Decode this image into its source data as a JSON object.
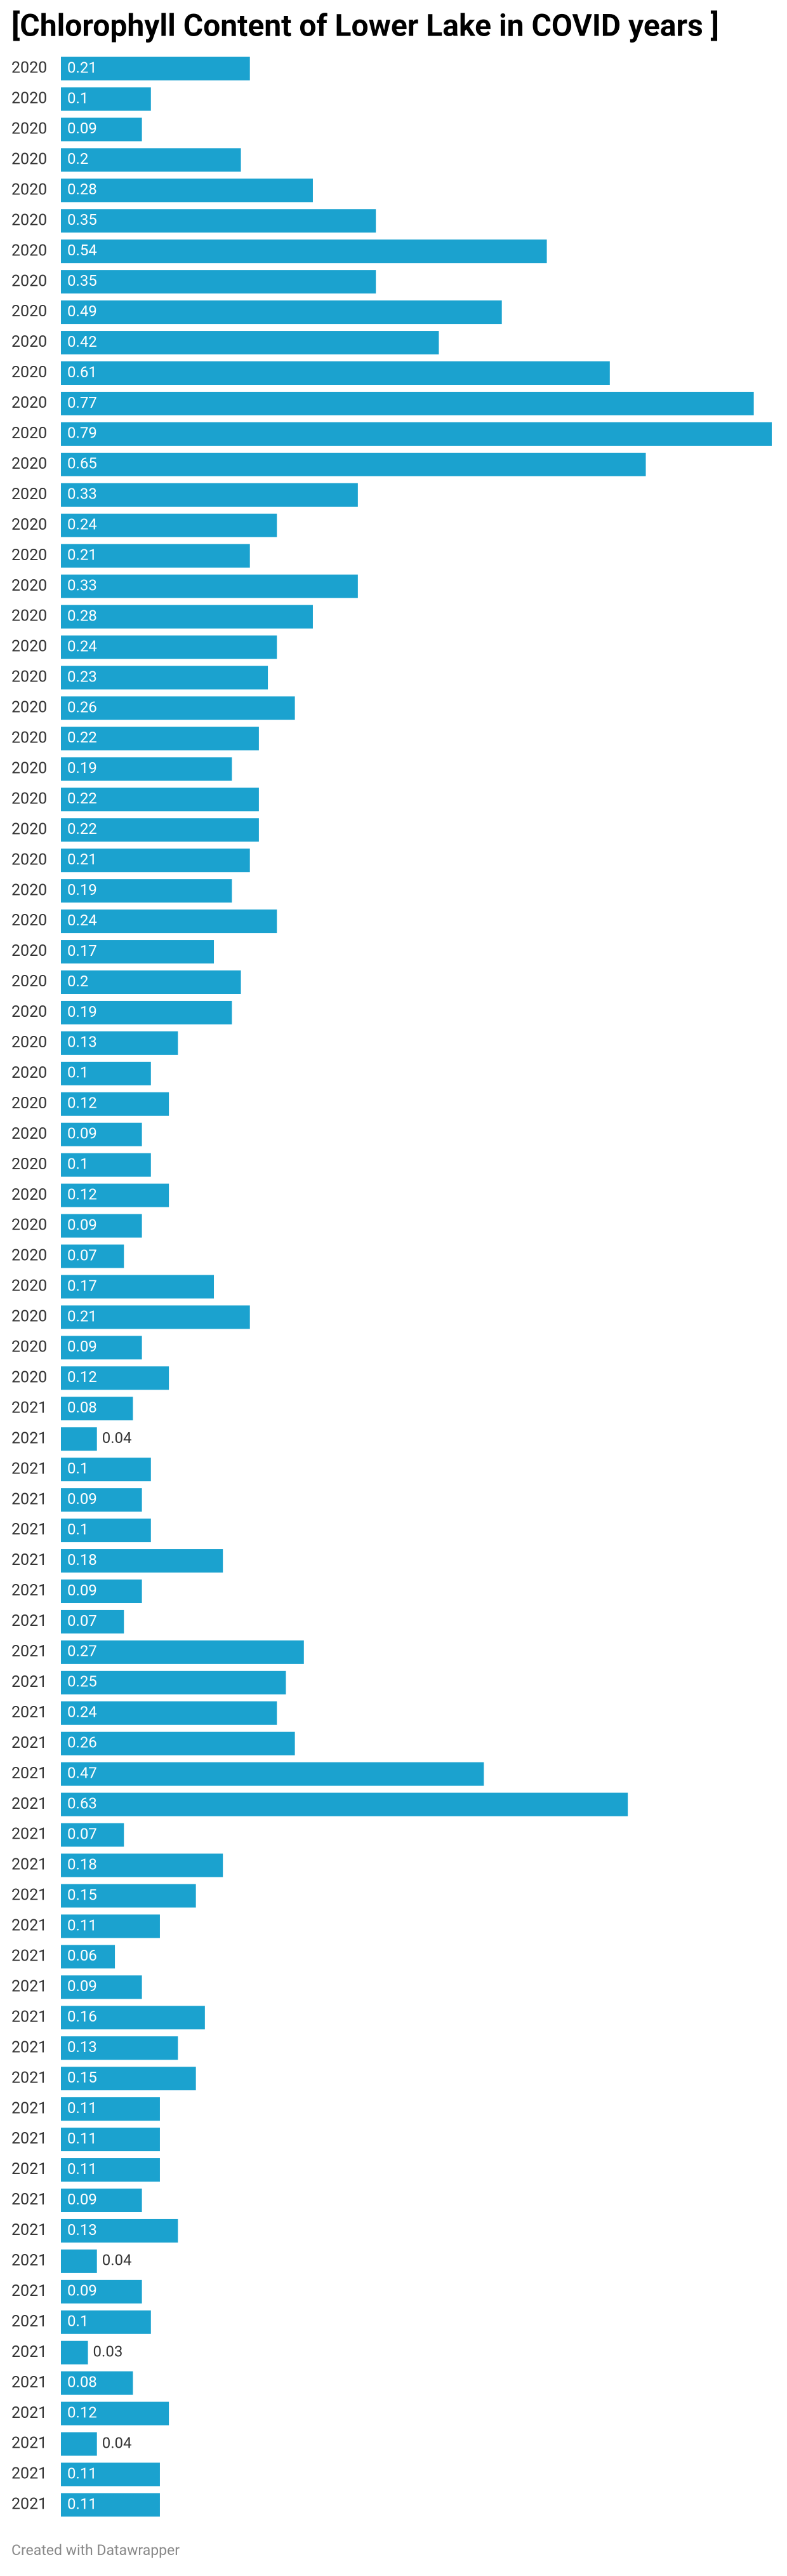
{
  "chart_data": {
    "type": "bar",
    "orientation": "horizontal",
    "title": "[Chlorophyll Content of Lower Lake in COVID years ]",
    "categories": [
      "2020",
      "2020",
      "2020",
      "2020",
      "2020",
      "2020",
      "2020",
      "2020",
      "2020",
      "2020",
      "2020",
      "2020",
      "2020",
      "2020",
      "2020",
      "2020",
      "2020",
      "2020",
      "2020",
      "2020",
      "2020",
      "2020",
      "2020",
      "2020",
      "2020",
      "2020",
      "2020",
      "2020",
      "2020",
      "2020",
      "2020",
      "2020",
      "2020",
      "2020",
      "2020",
      "2020",
      "2020",
      "2020",
      "2020",
      "2020",
      "2020",
      "2020",
      "2020",
      "2020",
      "2021",
      "2021",
      "2021",
      "2021",
      "2021",
      "2021",
      "2021",
      "2021",
      "2021",
      "2021",
      "2021",
      "2021",
      "2021",
      "2021",
      "2021",
      "2021",
      "2021",
      "2021",
      "2021",
      "2021",
      "2021",
      "2021",
      "2021",
      "2021",
      "2021",
      "2021",
      "2021",
      "2021",
      "2021",
      "2021",
      "2021",
      "2021",
      "2021",
      "2021",
      "2021",
      "2021",
      "2021"
    ],
    "values": [
      0.21,
      0.1,
      0.09,
      0.2,
      0.28,
      0.35,
      0.54,
      0.35,
      0.49,
      0.42,
      0.61,
      0.77,
      0.79,
      0.65,
      0.33,
      0.24,
      0.21,
      0.33,
      0.28,
      0.24,
      0.23,
      0.26,
      0.22,
      0.19,
      0.22,
      0.22,
      0.21,
      0.19,
      0.24,
      0.17,
      0.2,
      0.19,
      0.13,
      0.1,
      0.12,
      0.09,
      0.1,
      0.12,
      0.09,
      0.07,
      0.17,
      0.21,
      0.09,
      0.12,
      0.08,
      0.04,
      0.1,
      0.09,
      0.1,
      0.18,
      0.09,
      0.07,
      0.27,
      0.25,
      0.24,
      0.26,
      0.47,
      0.63,
      0.07,
      0.18,
      0.15,
      0.11,
      0.06,
      0.09,
      0.16,
      0.13,
      0.15,
      0.11,
      0.11,
      0.11,
      0.09,
      0.13,
      0.04,
      0.09,
      0.1,
      0.03,
      0.08,
      0.12,
      0.04,
      0.11,
      0.11
    ],
    "color": "#1ba2cf",
    "footer": "Created with Datawrapper"
  }
}
